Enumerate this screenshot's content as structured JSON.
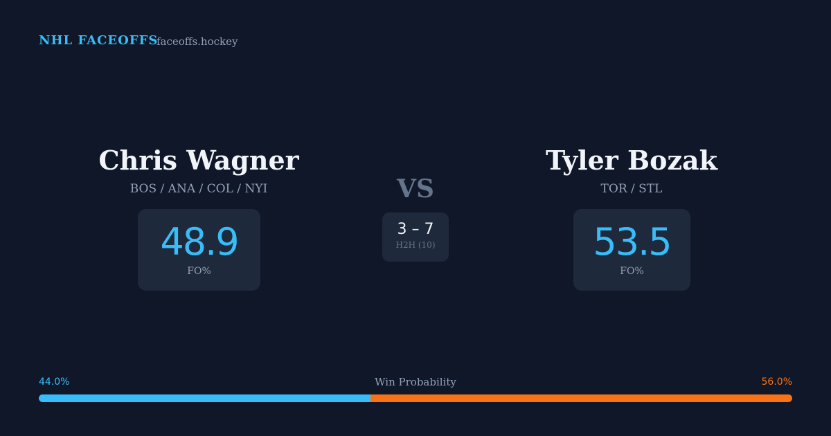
{
  "header": {
    "brand": "NHL FACEOFFS",
    "site": "faceoffs.hockey"
  },
  "players": [
    {
      "name": "Chris Wagner",
      "teams": "BOS / ANA / COL / NYI",
      "stat": "48.9",
      "stat_label": "FO%"
    },
    {
      "name": "Tyler Bozak",
      "teams": "TOR / STL",
      "stat": "53.5",
      "stat_label": "FO%"
    }
  ],
  "versus": {
    "label": "VS",
    "score": "3 – 7",
    "record_label": "H2H (10)"
  },
  "win_probability": {
    "title": "Win Probability",
    "left": {
      "value": 44.0,
      "label": "44.0%"
    },
    "right": {
      "value": 56.0,
      "label": "56.0%"
    }
  }
}
